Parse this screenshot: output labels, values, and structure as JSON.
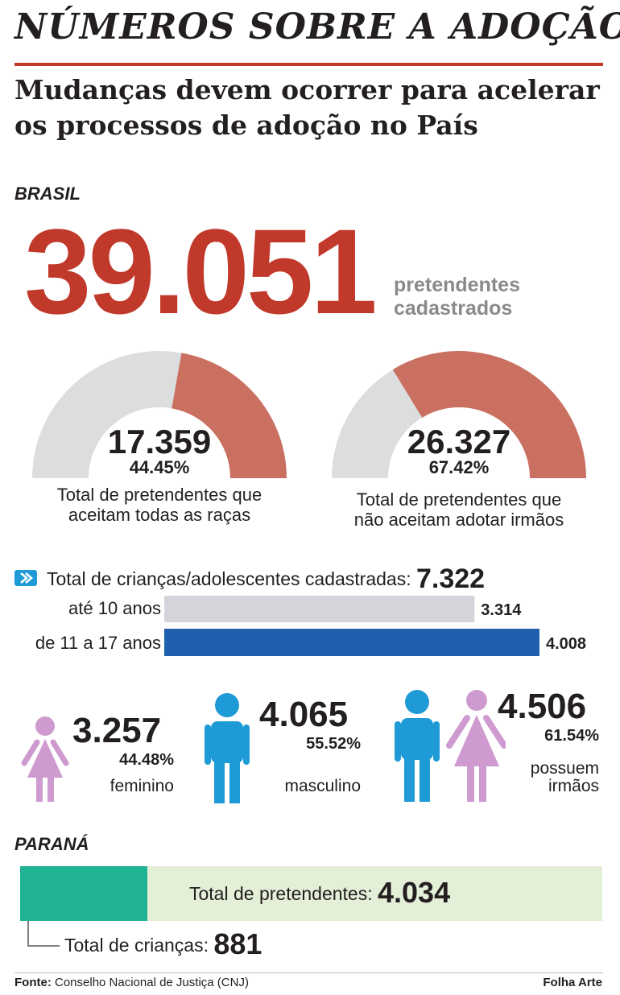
{
  "title": "NÚMEROS SOBRE A ADOÇÃO",
  "subtitle": "Mudanças devem ocorrer para acelerar os processos de adoção no País",
  "brasil": {
    "label": "BRASIL",
    "pretendentes_total": "39.051",
    "pretendentes_caption_1": "pretendentes",
    "pretendentes_caption_2": "cadastrados"
  },
  "colors": {
    "red": "#c0392b",
    "gauge_fill": "#c97060",
    "gauge_track": "#dcdddf",
    "bar_light": "#d3d5da",
    "bar_blue": "#1f5fad",
    "pink": "#cf9ad0",
    "blue": "#1e9ad6",
    "teal": "#1fb394",
    "pale_green": "#e4efd8"
  },
  "chart_data": [
    {
      "type": "gauge",
      "value": "17.359",
      "percent_label": "44.45%",
      "fraction": 0.4445,
      "caption_1": "Total de pretendentes que",
      "caption_2": "aceitam todas as raças"
    },
    {
      "type": "gauge",
      "value": "26.327",
      "percent_label": "67.42%",
      "fraction": 0.6742,
      "caption_1": "Total de pretendentes que",
      "caption_2": "não aceitam adotar irmãos"
    },
    {
      "type": "bar",
      "title": "Total de crianças/adolescentes cadastradas:",
      "total": "7.322",
      "categories": [
        "até 10 anos",
        "de 11 a 17 anos"
      ],
      "values": [
        3314,
        4008
      ],
      "value_labels": [
        "3.314",
        "4.008"
      ]
    }
  ],
  "figures": [
    {
      "icon": "girl-icon",
      "value": "3.257",
      "percent": "44.48%",
      "caption": "feminino"
    },
    {
      "icon": "boy-icon",
      "value": "4.065",
      "percent": "55.52%",
      "caption": "masculino"
    },
    {
      "icon": "siblings-icon",
      "value": "4.506",
      "percent": "61.54%",
      "caption_1": "possuem",
      "caption_2": "irmãos"
    }
  ],
  "parana": {
    "label": "PARANÁ",
    "pretendentes_label": "Total de pretendentes:",
    "pretendentes_value": "4.034",
    "pretendentes_num": 4034,
    "criancas_label": "Total de crianças:",
    "criancas_value": "881",
    "criancas_num": 881
  },
  "footer": {
    "source_label": "Fonte:",
    "source_text": "Conselho Nacional de Justiça (CNJ)",
    "credit": "Folha Arte"
  }
}
